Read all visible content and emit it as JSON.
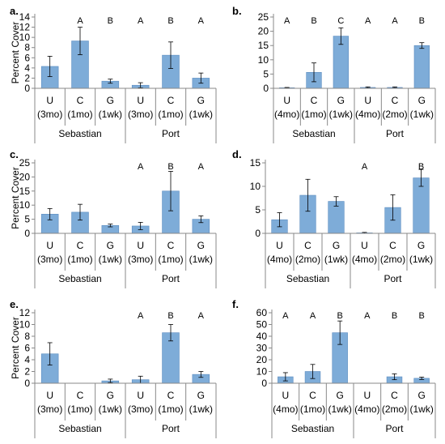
{
  "chart_data": [
    {
      "panel_label": "a.",
      "type": "bar",
      "ylabel": "Percent Cover",
      "ylim": [
        0,
        14
      ],
      "yticks": [
        0,
        2,
        4,
        6,
        8,
        10,
        12,
        14
      ],
      "categories": [
        {
          "top": "U",
          "bottom": "(3mo)"
        },
        {
          "top": "C",
          "bottom": "(1mo)"
        },
        {
          "top": "G",
          "bottom": "(1wk)"
        },
        {
          "top": "U",
          "bottom": "(3mo)"
        },
        {
          "top": "C",
          "bottom": "(1mo)"
        },
        {
          "top": "G",
          "bottom": "(1wk)"
        }
      ],
      "groups": [
        "Sebastian",
        "Port"
      ],
      "values": [
        4.3,
        9.3,
        1.4,
        0.6,
        6.5,
        2.0
      ],
      "errors": [
        2.0,
        2.7,
        0.4,
        0.5,
        2.6,
        1.0
      ],
      "letters": [
        "",
        "A",
        "B",
        "A",
        "B",
        "A"
      ],
      "bar_color": "#7EACD8",
      "grid": false
    },
    {
      "panel_label": "b.",
      "type": "bar",
      "ylabel": "",
      "ylim": [
        0,
        25
      ],
      "yticks": [
        0,
        5,
        10,
        15,
        20,
        25
      ],
      "categories": [
        {
          "top": "U",
          "bottom": "(4mo)"
        },
        {
          "top": "C",
          "bottom": "(1mo)"
        },
        {
          "top": "G",
          "bottom": "(1wk)"
        },
        {
          "top": "U",
          "bottom": "(4mo)"
        },
        {
          "top": "C",
          "bottom": "(2mo)"
        },
        {
          "top": "G",
          "bottom": "(1wk)"
        }
      ],
      "groups": [
        "Sebastian",
        "Port"
      ],
      "values": [
        0.2,
        5.6,
        18.3,
        0.3,
        0.3,
        15.0
      ],
      "errors": [
        0.1,
        3.3,
        2.9,
        0.2,
        0.2,
        1.0
      ],
      "letters": [
        "A",
        "B",
        "C",
        "A",
        "A",
        "B"
      ],
      "bar_color": "#7EACD8",
      "grid": false
    },
    {
      "panel_label": "c.",
      "type": "bar",
      "ylabel": "Percent Cover",
      "ylim": [
        0,
        25
      ],
      "yticks": [
        0,
        5,
        10,
        15,
        20,
        25
      ],
      "categories": [
        {
          "top": "U",
          "bottom": "(3mo)"
        },
        {
          "top": "C",
          "bottom": "(1mo)"
        },
        {
          "top": "G",
          "bottom": "(1wk)"
        },
        {
          "top": "U",
          "bottom": "(3mo)"
        },
        {
          "top": "C",
          "bottom": "(1mo)"
        },
        {
          "top": "G",
          "bottom": "(1wk)"
        }
      ],
      "groups": [
        "Sebastian",
        "Port"
      ],
      "values": [
        6.8,
        7.5,
        2.8,
        2.6,
        15.0,
        5.0
      ],
      "errors": [
        2.0,
        2.8,
        0.5,
        1.3,
        7.0,
        1.2
      ],
      "letters": [
        "",
        "",
        "",
        "A",
        "B",
        "A"
      ],
      "bar_color": "#7EACD8",
      "grid": false
    },
    {
      "panel_label": "d.",
      "type": "bar",
      "ylabel": "",
      "ylim": [
        0,
        15
      ],
      "yticks": [
        0,
        5,
        10,
        15
      ],
      "categories": [
        {
          "top": "U",
          "bottom": "(4mo)"
        },
        {
          "top": "C",
          "bottom": "(2mo)"
        },
        {
          "top": "G",
          "bottom": "(1wk)"
        },
        {
          "top": "U",
          "bottom": "(4mo)"
        },
        {
          "top": "C",
          "bottom": "(2mo)"
        },
        {
          "top": "G",
          "bottom": "(1wk)"
        }
      ],
      "groups": [
        "Sebastian",
        "Port"
      ],
      "values": [
        2.9,
        8.1,
        6.8,
        0.1,
        5.5,
        11.8
      ],
      "errors": [
        1.5,
        3.4,
        1.0,
        0.1,
        2.7,
        1.8
      ],
      "letters": [
        "",
        "",
        "",
        "A",
        "",
        "B"
      ],
      "bar_color": "#7EACD8",
      "grid": false
    },
    {
      "panel_label": "e.",
      "type": "bar",
      "ylabel": "Percent Cover",
      "ylim": [
        0,
        12
      ],
      "yticks": [
        0,
        2,
        4,
        6,
        8,
        10,
        12
      ],
      "categories": [
        {
          "top": "U",
          "bottom": "(3mo)"
        },
        {
          "top": "C",
          "bottom": "(1mo)"
        },
        {
          "top": "G",
          "bottom": "(1wk)"
        },
        {
          "top": "U",
          "bottom": "(3mo)"
        },
        {
          "top": "C",
          "bottom": "(1mo)"
        },
        {
          "top": "G",
          "bottom": "(1wk)"
        }
      ],
      "groups": [
        "Sebastian",
        "Port"
      ],
      "values": [
        5.0,
        0,
        0.4,
        0.6,
        8.6,
        1.5
      ],
      "errors": [
        1.9,
        0,
        0.3,
        0.6,
        1.4,
        0.5
      ],
      "letters": [
        "",
        "",
        "",
        "A",
        "B",
        "A"
      ],
      "bar_color": "#7EACD8",
      "grid": false
    },
    {
      "panel_label": "f.",
      "type": "bar",
      "ylabel": "",
      "ylim": [
        0,
        60
      ],
      "yticks": [
        0,
        10,
        20,
        30,
        40,
        50,
        60
      ],
      "categories": [
        {
          "top": "U",
          "bottom": "(4mo)"
        },
        {
          "top": "C",
          "bottom": "(1mo)"
        },
        {
          "top": "G",
          "bottom": "(1wk)"
        },
        {
          "top": "U",
          "bottom": "(4mo)"
        },
        {
          "top": "C",
          "bottom": "(2mo)"
        },
        {
          "top": "G",
          "bottom": "(1wk)"
        }
      ],
      "groups": [
        "Sebastian",
        "Port"
      ],
      "values": [
        5.5,
        10.0,
        43.0,
        0,
        5.5,
        4.2
      ],
      "errors": [
        3.5,
        6.0,
        10.0,
        0,
        2.5,
        1.0
      ],
      "letters": [
        "A",
        "A",
        "B",
        "A",
        "B",
        "B"
      ],
      "bar_color": "#7EACD8",
      "grid": false
    }
  ]
}
